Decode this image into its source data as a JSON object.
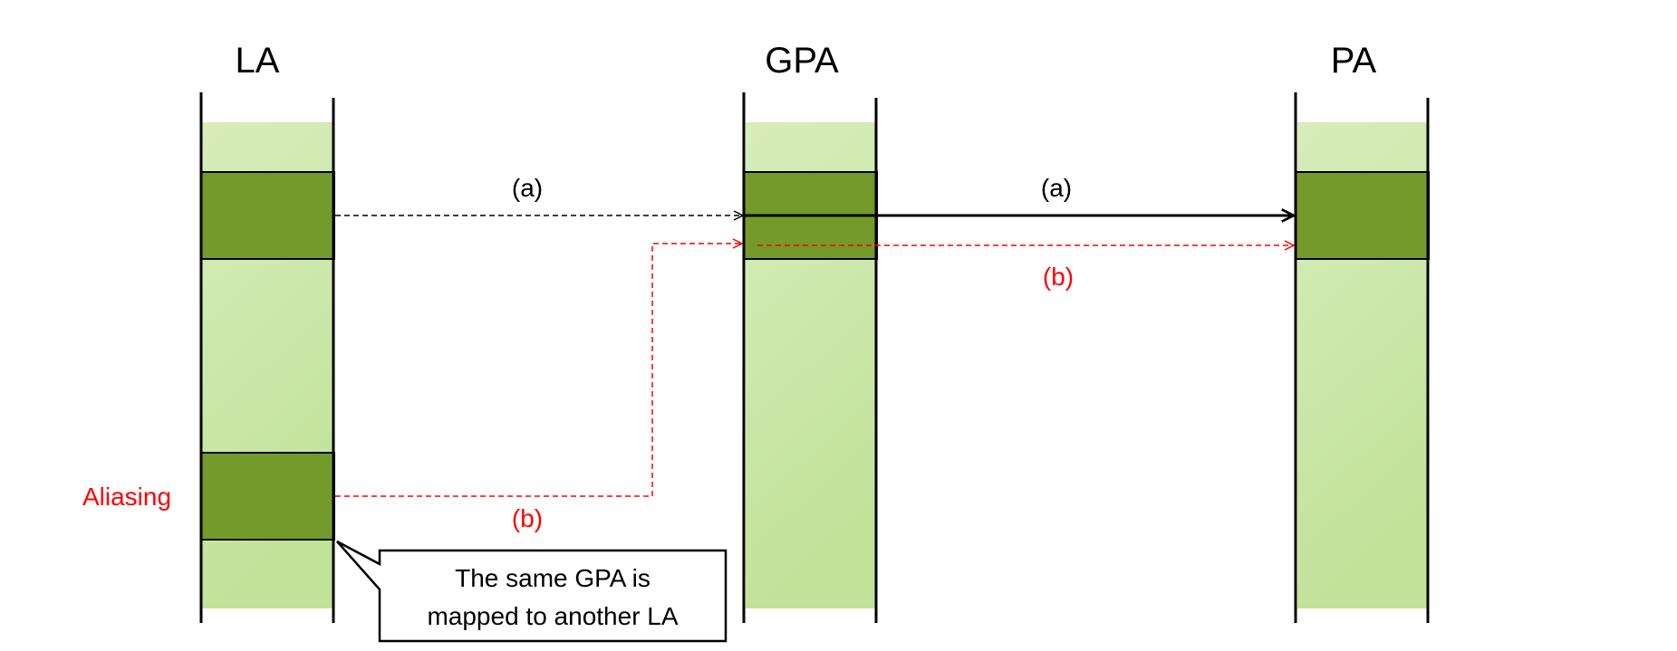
{
  "columns": [
    {
      "title": "LA"
    },
    {
      "title": "GPA"
    },
    {
      "title": "PA"
    }
  ],
  "labels": {
    "aliasing": "Aliasing",
    "path_a_la_to_gpa": "(a)",
    "path_a_gpa_to_pa": "(a)",
    "path_b_la_to_gpa": "(b)",
    "path_b_gpa_to_pa": "(b)"
  },
  "callout": {
    "line1": "The same GPA is",
    "line2": "mapped to another LA"
  },
  "colors": {
    "region_light_top": "#d6ecb8",
    "region_light_bottom": "#c3e39c",
    "block_dark": "#739a2b",
    "path_a": "#000000",
    "path_b": "#ff0000",
    "aliasing_text": "#ff0000"
  }
}
